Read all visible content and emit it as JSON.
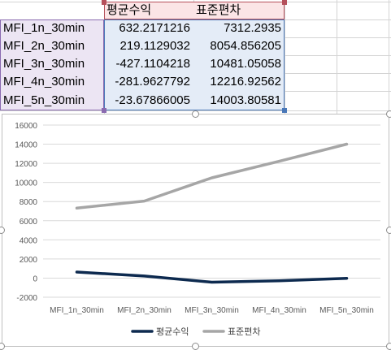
{
  "table": {
    "headers": [
      "평균수익",
      "표준편차"
    ],
    "rows": [
      {
        "label": "MFI_1n_30min",
        "mean": "632.2171216",
        "std": "7312.2935"
      },
      {
        "label": "MFI_2n_30min",
        "mean": "219.1129032",
        "std": "8054.856205"
      },
      {
        "label": "MFI_3n_30min",
        "mean": "-427.1104218",
        "std": "10481.05058"
      },
      {
        "label": "MFI_4n_30min",
        "mean": "-281.9627792",
        "std": "12216.92562"
      },
      {
        "label": "MFI_5n_30min",
        "mean": "-23.67866005",
        "std": "14003.80581"
      }
    ]
  },
  "chart_data": {
    "type": "line",
    "categories": [
      "MFI_1n_30min",
      "MFI_2n_30min",
      "MFI_3n_30min",
      "MFI_4n_30min",
      "MFI_5n_30min"
    ],
    "series": [
      {
        "name": "평균수익",
        "color": "#0d2a4f",
        "values": [
          632.2171216,
          219.1129032,
          -427.1104218,
          -281.9627792,
          -23.67866005
        ]
      },
      {
        "name": "표준편차",
        "color": "#a6a6a6",
        "values": [
          7312.2935,
          8054.856205,
          10481.05058,
          12216.92562,
          14003.80581
        ]
      }
    ],
    "ylim": [
      -2000,
      16000
    ],
    "yticks": [
      "16000",
      "14000",
      "12000",
      "10000",
      "8000",
      "6000",
      "4000",
      "2000",
      "0",
      "-2000"
    ],
    "grid": true,
    "legend_position": "bottom",
    "title": "",
    "xlabel": "",
    "ylabel": ""
  }
}
